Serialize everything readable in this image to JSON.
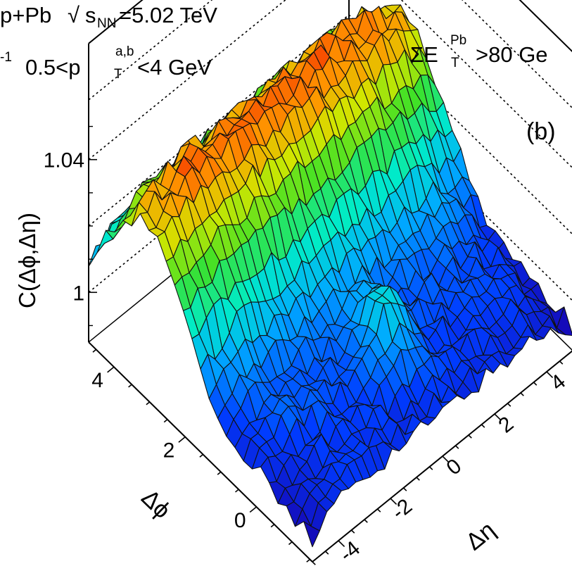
{
  "chart_data": {
    "type": "surface",
    "panel_label": "(b)",
    "system_label": "p+Pb",
    "energy_label": "=5.02 TeV",
    "sqrt_s_sub": "NN",
    "lumi_fragment": "-1",
    "pt_cut_prefix": "0.5<p",
    "pt_cut_sup": "a,b",
    "pt_cut_sub": "T",
    "pt_cut_suffix": "<4 GeV",
    "et_cut_prefix": "ΣE",
    "et_cut_sup": "Pb",
    "et_cut_sub": "T",
    "et_cut_suffix": ">80 Ge",
    "z_label": "C(Δϕ,Δη)",
    "x_label": "Δη",
    "y_label": "Δϕ",
    "z_ticks": [
      "1.04",
      "1"
    ],
    "x_ticks": [
      "-4",
      "-2",
      "0",
      "2",
      "4"
    ],
    "y_ticks": [
      "0",
      "2",
      "4"
    ],
    "x_range": [
      -5,
      5
    ],
    "y_range": [
      -1.57,
      4.71
    ],
    "z_range": [
      0.985,
      1.055
    ],
    "near_side_peak": {
      "deta": 0,
      "dphi": 0,
      "z": 1.015
    },
    "away_side_ridge": {
      "dphi": 3.14,
      "z": 1.045
    },
    "color_map": "rainbow"
  }
}
